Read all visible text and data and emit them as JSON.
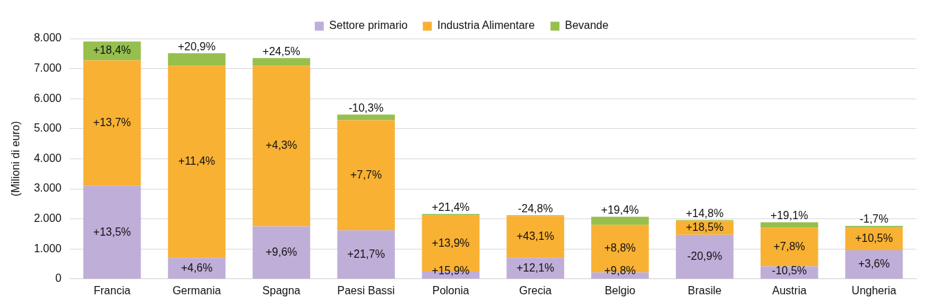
{
  "chart_data": {
    "type": "bar",
    "stacked": true,
    "ylabel": "(Milioni di euro)",
    "categories": [
      "Francia",
      "Germania",
      "Spagna",
      "Paesi Bassi",
      "Polonia",
      "Grecia",
      "Belgio",
      "Brasile",
      "Austria",
      "Ungheria"
    ],
    "series": [
      {
        "name": "Settore primario",
        "color": "#bfaed8",
        "values": [
          3100,
          700,
          1750,
          1620,
          250,
          700,
          220,
          1470,
          420,
          960
        ]
      },
      {
        "name": "Industria Alimentare",
        "color": "#f8b133",
        "values": [
          4180,
          6400,
          5350,
          3660,
          1860,
          1400,
          1580,
          470,
          1290,
          750
        ]
      },
      {
        "name": "Bevande",
        "color": "#96bf4e",
        "values": [
          620,
          410,
          250,
          190,
          50,
          20,
          270,
          20,
          180,
          60
        ]
      }
    ],
    "annotations": [
      "+13,5%",
      "+13,7%",
      "+18,4%",
      "+4,6%",
      "+11,4%",
      "+20,9%",
      "+9,6%",
      "+4,3%",
      "+24,5%",
      "+21,7%",
      "+7,7%",
      "-10,3%",
      "+15,9%",
      "+13,9%",
      "+21,4%",
      "+12,1%",
      "+43,1%",
      "-24,8%",
      "+9,8%",
      "+8,8%",
      "+19,4%",
      "-20,9%",
      "+18,5%",
      "+14,8%",
      "-10,5%",
      "+7,8%",
      "+19,1%",
      "+3,6%",
      "+10,5%",
      "-1,7%"
    ],
    "ylim": [
      0,
      8000
    ],
    "yticks": [
      {
        "value": 0,
        "label": "0"
      },
      {
        "value": 1000,
        "label": "1.000"
      },
      {
        "value": 2000,
        "label": "2.000"
      },
      {
        "value": 3000,
        "label": "3.000"
      },
      {
        "value": 4000,
        "label": "4.000"
      },
      {
        "value": 5000,
        "label": "5.000"
      },
      {
        "value": 6000,
        "label": "6.000"
      },
      {
        "value": 7000,
        "label": "7.000"
      },
      {
        "value": 8000,
        "label": "8.000"
      }
    ],
    "grid": "y",
    "legend": "top"
  }
}
